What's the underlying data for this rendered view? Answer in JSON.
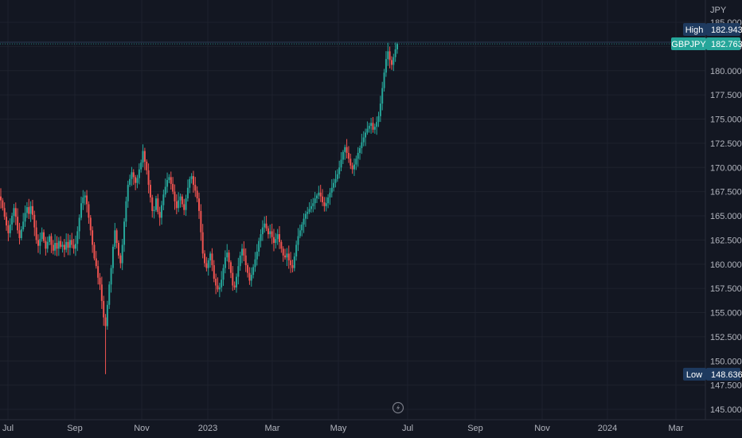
{
  "chart_data": {
    "type": "candlestick",
    "symbol": "GBPJPY",
    "unit": "JPY",
    "y_ticks": [
      "185.000",
      "182.500",
      "180.000",
      "177.500",
      "175.000",
      "172.500",
      "170.000",
      "167.500",
      "165.000",
      "162.500",
      "160.000",
      "157.500",
      "155.000",
      "152.500",
      "150.000",
      "147.500",
      "145.000"
    ],
    "ylim": [
      145,
      185
    ],
    "x_ticks": [
      "Jul",
      "Sep",
      "Nov",
      "2023",
      "Mar",
      "May",
      "Jul",
      "Sep",
      "Nov",
      "2024",
      "Mar"
    ],
    "high": {
      "label": "High",
      "value": "182.943",
      "v": 182.943
    },
    "last": {
      "label": "GBPJPY",
      "value": "182.763",
      "v": 182.763
    },
    "low": {
      "label": "Low",
      "value": "148.636",
      "v": 148.636
    },
    "closes": [
      166.6,
      165.8,
      164.9,
      164.0,
      163.2,
      164.1,
      165.0,
      165.8,
      164.9,
      163.5,
      162.7,
      163.6,
      164.4,
      165.3,
      165.9,
      165.2,
      166.0,
      165.1,
      163.8,
      162.5,
      161.9,
      162.6,
      163.3,
      162.4,
      161.6,
      162.3,
      162.9,
      162.0,
      161.4,
      162.2,
      161.6,
      162.4,
      161.8,
      162.0,
      161.5,
      162.3,
      161.7,
      162.5,
      162.0,
      161.6,
      162.1,
      163.4,
      164.8,
      166.3,
      166.9,
      167.1,
      166.2,
      164.8,
      163.5,
      162.0,
      160.6,
      159.8,
      158.6,
      157.9,
      156.2,
      154.5,
      153.6,
      155.8,
      157.9,
      159.6,
      161.8,
      163.5,
      162.2,
      160.9,
      160.1,
      162.0,
      164.4,
      166.5,
      168.2,
      168.8,
      169.5,
      169.0,
      168.4,
      168.9,
      169.8,
      170.5,
      171.7,
      170.6,
      169.7,
      168.2,
      166.9,
      165.5,
      165.6,
      166.8,
      165.4,
      164.8,
      166.1,
      167.2,
      168.0,
      168.7,
      169.0,
      168.3,
      167.5,
      166.5,
      165.8,
      166.6,
      167.0,
      166.2,
      165.6,
      166.8,
      167.9,
      168.8,
      169.1,
      168.2,
      167.6,
      166.8,
      165.5,
      163.3,
      161.1,
      160.1,
      159.6,
      160.4,
      161.1,
      159.9,
      158.5,
      157.8,
      157.4,
      157.6,
      158.4,
      159.6,
      160.7,
      161.2,
      160.2,
      159.1,
      157.8,
      157.6,
      158.7,
      159.8,
      160.9,
      161.6,
      160.9,
      159.9,
      159.1,
      158.3,
      158.9,
      159.7,
      160.5,
      161.3,
      162.4,
      163.1,
      163.8,
      164.2,
      163.7,
      163.1,
      163.4,
      162.8,
      162.2,
      162.6,
      163.1,
      162.3,
      161.6,
      160.9,
      160.7,
      161.1,
      160.4,
      159.9,
      159.6,
      160.8,
      162.0,
      162.9,
      163.5,
      164.1,
      164.7,
      165.2,
      165.4,
      165.7,
      166.0,
      166.3,
      166.8,
      167.1,
      167.4,
      167.0,
      166.4,
      166.0,
      166.3,
      166.9,
      167.4,
      167.9,
      168.4,
      168.8,
      169.3,
      170.0,
      170.8,
      171.6,
      172.1,
      171.5,
      170.9,
      170.2,
      169.8,
      170.3,
      170.9,
      171.5,
      172.0,
      172.6,
      173.1,
      173.6,
      174.0,
      174.3,
      174.6,
      173.9,
      174.2,
      174.7,
      175.3,
      176.6,
      178.2,
      179.8,
      181.2,
      182.0,
      181.1,
      180.6,
      181.4,
      182.2,
      182.763
    ]
  }
}
